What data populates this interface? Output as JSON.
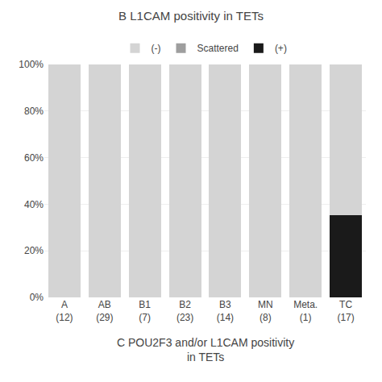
{
  "chart_data": {
    "type": "bar",
    "title": "B L1CAM positivity in TETs",
    "categories": [
      "A\n(12)",
      "AB\n(29)",
      "B1\n(7)",
      "B2\n(23)",
      "B3\n(14)",
      "MN\n(8)",
      "Meta.\n(1)",
      "TC\n(17)"
    ],
    "series": [
      {
        "name": "(+)",
        "color": "#1a1a1a",
        "values": [
          0,
          0,
          0,
          0,
          0,
          0,
          0,
          35.3
        ]
      },
      {
        "name": "Scattered",
        "color": "#9e9e9e",
        "values": [
          null,
          null,
          null,
          null,
          null,
          null,
          null,
          null
        ]
      },
      {
        "name": "(-)",
        "color": "#d4d4d4",
        "values": [
          100,
          100,
          100,
          100,
          100,
          100,
          100,
          64.7
        ]
      }
    ],
    "stacked": true,
    "ylim": [
      0,
      100
    ],
    "yticks": [
      {
        "value": 0,
        "label": "0%"
      },
      {
        "value": 20,
        "label": "20%"
      },
      {
        "value": 40,
        "label": "40%"
      },
      {
        "value": 60,
        "label": "60%"
      },
      {
        "value": 80,
        "label": "80%"
      },
      {
        "value": 100,
        "label": "100%"
      }
    ],
    "grid": true,
    "legend": "top",
    "annotations": [
      "C POU2F3 and/or L1CAM positivity\nin TETs"
    ]
  }
}
